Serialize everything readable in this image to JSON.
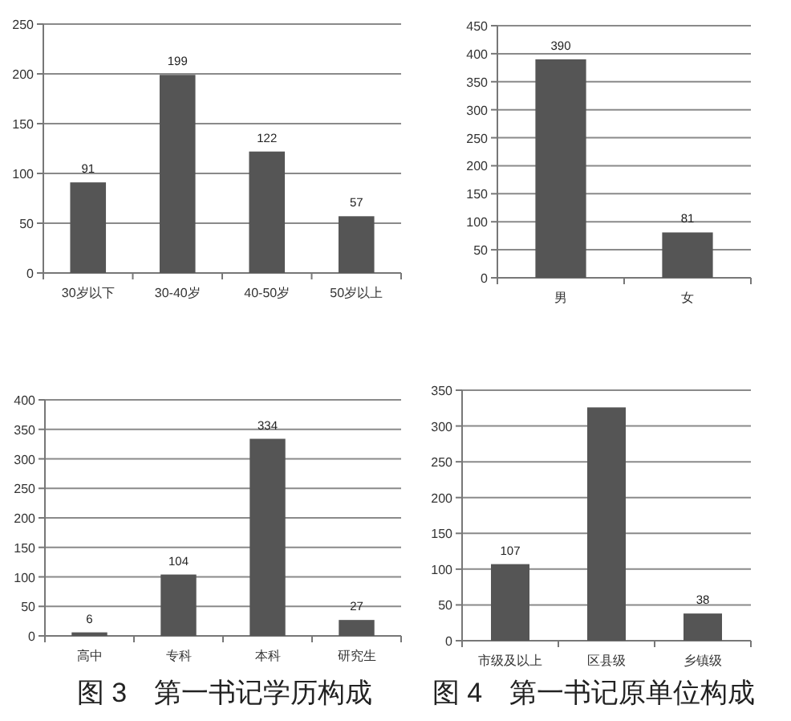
{
  "chart_data": [
    {
      "type": "bar",
      "categories": [
        "30岁以下",
        "30-40岁",
        "40-50岁",
        "50岁以上"
      ],
      "values": [
        91,
        199,
        122,
        57
      ],
      "color": "#555555",
      "ylim": [
        0,
        250
      ],
      "yticks": [
        0,
        50,
        100,
        150,
        200,
        250
      ],
      "grid": "y",
      "data_labels": true
    },
    {
      "type": "bar",
      "categories": [
        "男",
        "女"
      ],
      "values": [
        390,
        81
      ],
      "color": "#555555",
      "ylim": [
        0,
        450
      ],
      "yticks": [
        0,
        50,
        100,
        150,
        200,
        250,
        300,
        350,
        400,
        450
      ],
      "grid": "y",
      "data_labels": true
    },
    {
      "type": "bar",
      "title": "图 3　第一书记学历构成",
      "categories": [
        "高中",
        "专科",
        "本科",
        "研究生"
      ],
      "values": [
        6,
        104,
        334,
        27
      ],
      "color": "#555555",
      "ylim": [
        0,
        400
      ],
      "yticks": [
        0,
        50,
        100,
        150,
        200,
        250,
        300,
        350,
        400
      ],
      "grid": "y",
      "data_labels": true
    },
    {
      "type": "bar",
      "title": "图 4　第一书记原单位构成",
      "categories": [
        "市级及以上",
        "区县级",
        "乡镇级"
      ],
      "values": [
        107,
        326,
        38
      ],
      "value_labels": [
        "107",
        null,
        "38"
      ],
      "color": "#555555",
      "ylim": [
        0,
        350
      ],
      "yticks": [
        0,
        50,
        100,
        150,
        200,
        250,
        300,
        350
      ],
      "grid": "y"
    }
  ]
}
